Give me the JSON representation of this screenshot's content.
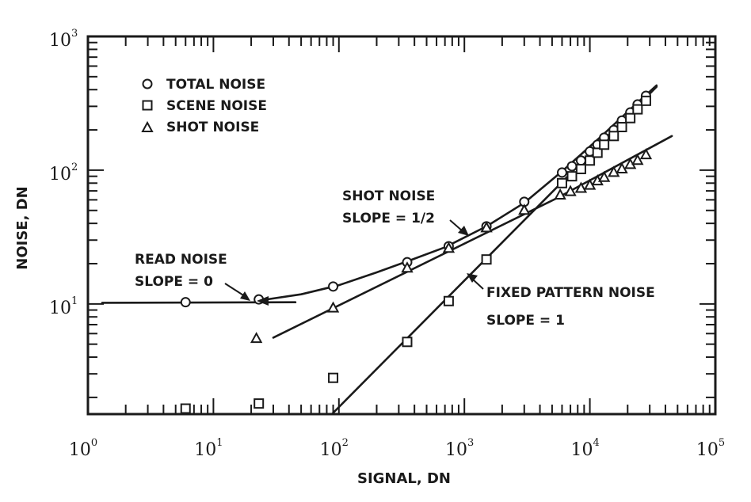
{
  "chart_data": {
    "type": "scatter",
    "title": "",
    "xlabel": "SIGNAL, DN",
    "ylabel": "NOISE, DN",
    "xscale": "log",
    "yscale": "log",
    "xlim": [
      1,
      100000
    ],
    "ylim": [
      1.5,
      1000
    ],
    "x_ticks": [
      {
        "base": "10",
        "exp": "0",
        "value": 1
      },
      {
        "base": "10",
        "exp": "1",
        "value": 10
      },
      {
        "base": "10",
        "exp": "2",
        "value": 100
      },
      {
        "base": "10",
        "exp": "3",
        "value": 1000
      },
      {
        "base": "10",
        "exp": "4",
        "value": 10000
      },
      {
        "base": "10",
        "exp": "5",
        "value": 100000
      }
    ],
    "y_ticks": [
      {
        "base": "10",
        "exp": "1",
        "value": 10
      },
      {
        "base": "10",
        "exp": "2",
        "value": 100
      },
      {
        "base": "10",
        "exp": "3",
        "value": 1000
      }
    ],
    "legend": [
      {
        "label": "TOTAL NOISE",
        "marker": "circle"
      },
      {
        "label": "SCENE NOISE",
        "marker": "square"
      },
      {
        "label": "SHOT NOISE",
        "marker": "triangle"
      }
    ],
    "series": [
      {
        "name": "TOTAL NOISE",
        "marker": "circle",
        "points": [
          [
            6,
            10.3
          ],
          [
            23,
            10.8
          ],
          [
            90,
            13.5
          ],
          [
            350,
            20.5
          ],
          [
            750,
            27
          ],
          [
            1500,
            38
          ],
          [
            3000,
            58
          ],
          [
            6000,
            96
          ],
          [
            7200,
            107
          ],
          [
            8500,
            118
          ],
          [
            10000,
            138
          ],
          [
            11500,
            155
          ],
          [
            13000,
            175
          ],
          [
            15500,
            200
          ],
          [
            18000,
            235
          ],
          [
            21000,
            270
          ],
          [
            24000,
            310
          ],
          [
            28000,
            360
          ]
        ]
      },
      {
        "name": "SCENE NOISE",
        "marker": "square",
        "points": [
          [
            6,
            1.65
          ],
          [
            23,
            1.8
          ],
          [
            90,
            2.8
          ],
          [
            350,
            5.2
          ],
          [
            750,
            10.5
          ],
          [
            1500,
            21.5
          ],
          [
            6000,
            80
          ],
          [
            7200,
            90
          ],
          [
            8500,
            102
          ],
          [
            10000,
            118
          ],
          [
            11500,
            135
          ],
          [
            13000,
            155
          ],
          [
            15500,
            180
          ],
          [
            18000,
            210
          ],
          [
            21000,
            245
          ],
          [
            24000,
            285
          ],
          [
            28000,
            330
          ]
        ]
      },
      {
        "name": "SHOT NOISE",
        "marker": "triangle",
        "points": [
          [
            22,
            5.5
          ],
          [
            90,
            9.3
          ],
          [
            350,
            18.5
          ],
          [
            750,
            26
          ],
          [
            1500,
            37
          ],
          [
            3000,
            50
          ],
          [
            5800,
            65
          ],
          [
            7000,
            69
          ],
          [
            8500,
            73
          ],
          [
            10000,
            77
          ],
          [
            11500,
            83
          ],
          [
            13000,
            88
          ],
          [
            15500,
            96
          ],
          [
            18000,
            102
          ],
          [
            21000,
            110
          ],
          [
            24000,
            118
          ],
          [
            28000,
            130
          ]
        ]
      }
    ],
    "fit_lines": [
      {
        "name": "read noise",
        "points": [
          [
            1.3,
            10.2
          ],
          [
            45,
            10.3
          ]
        ]
      },
      {
        "name": "total noise curve",
        "points": [
          [
            23,
            10.6
          ],
          [
            50,
            11.8
          ],
          [
            100,
            13.8
          ],
          [
            200,
            17.2
          ],
          [
            350,
            20.8
          ],
          [
            700,
            26.5
          ],
          [
            1500,
            38
          ],
          [
            3000,
            57
          ],
          [
            6000,
            98
          ],
          [
            12000,
            175
          ],
          [
            24000,
            320
          ],
          [
            34000,
            430
          ]
        ]
      },
      {
        "name": "shot noise",
        "points": [
          [
            30,
            5.6
          ],
          [
            5500,
            62
          ],
          [
            45000,
            180
          ]
        ]
      },
      {
        "name": "fixed pattern noise",
        "points": [
          [
            88,
            1.5
          ],
          [
            34000,
            420
          ]
        ]
      }
    ],
    "annotations": [
      {
        "id": "read",
        "line1": "READ NOISE",
        "line2": "SLOPE = 0"
      },
      {
        "id": "shot",
        "line1": "SHOT NOISE",
        "line2": "SLOPE = 1/2"
      },
      {
        "id": "fixed",
        "line1": "FIXED PATTERN NOISE",
        "line2": "SLOPE = 1"
      }
    ]
  }
}
